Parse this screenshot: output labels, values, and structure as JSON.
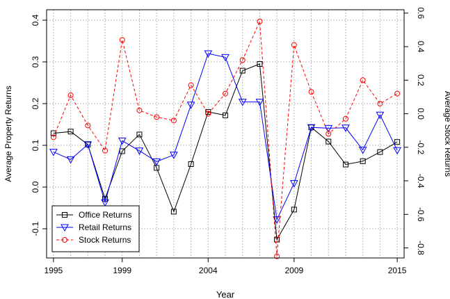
{
  "chart_data": {
    "type": "line",
    "xlabel": "Year",
    "ylabel_left": "Average Property Returns",
    "ylabel_right": "Average Stock Returns",
    "x_ticks": [
      1995,
      1999,
      2004,
      2009,
      2015
    ],
    "y_left_ticks": [
      "-0.1",
      "0.0",
      "0.1",
      "0.2",
      "0.3",
      "0.4"
    ],
    "y_right_ticks": [
      "-0.8",
      "-0.6",
      "-0.4",
      "-0.2",
      "0.0",
      "0.2",
      "0.4",
      "0.6"
    ],
    "xlim": [
      1994.6,
      2015.4
    ],
    "ylim_left": [
      -0.17,
      0.425
    ],
    "ylim_right": [
      -0.86,
      0.62
    ],
    "grid": true,
    "legend_position": "bottom-left",
    "x": [
      1995,
      1996,
      1997,
      1998,
      1999,
      2000,
      2001,
      2002,
      2003,
      2004,
      2005,
      2006,
      2007,
      2008,
      2009,
      2010,
      2011,
      2012,
      2013,
      2014,
      2015
    ],
    "series": [
      {
        "name": "Office Returns",
        "axis": "left",
        "color": "#000000",
        "marker": "square",
        "line_style": "solid",
        "values": [
          0.129,
          0.133,
          0.102,
          -0.028,
          0.086,
          0.126,
          0.046,
          -0.059,
          0.055,
          0.18,
          0.172,
          0.279,
          0.295,
          -0.126,
          -0.054,
          0.143,
          0.109,
          0.054,
          0.062,
          0.084,
          0.108
        ]
      },
      {
        "name": "Retail Returns",
        "axis": "left",
        "color": "#0000ff",
        "marker": "triangle-down",
        "line_style": "solid",
        "values": [
          0.084,
          0.066,
          0.102,
          -0.037,
          0.111,
          0.087,
          0.061,
          0.077,
          0.197,
          0.32,
          0.311,
          0.204,
          0.204,
          -0.078,
          0.009,
          0.143,
          0.141,
          0.142,
          0.089,
          0.173,
          0.088
        ]
      },
      {
        "name": "Stock Returns",
        "axis": "right",
        "color": "#ff0000",
        "marker": "circle",
        "line_style": "dashed",
        "values": [
          -0.14,
          0.11,
          -0.07,
          -0.22,
          0.44,
          0.02,
          -0.02,
          -0.04,
          0.17,
          0.0,
          0.12,
          0.32,
          0.55,
          -0.85,
          0.41,
          0.13,
          -0.12,
          -0.03,
          0.2,
          0.06,
          0.12
        ]
      }
    ]
  }
}
